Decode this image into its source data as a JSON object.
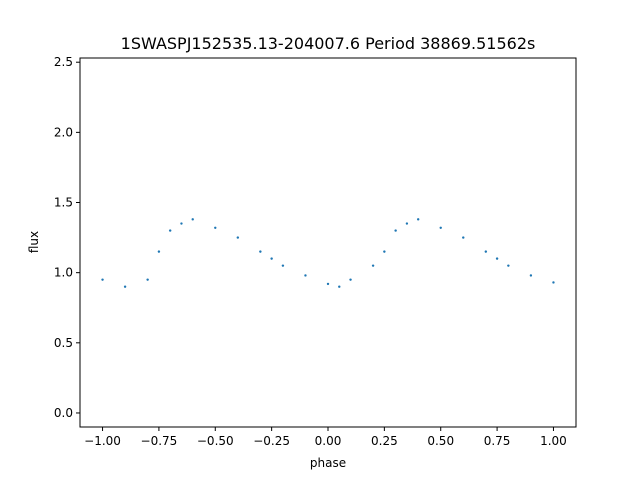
{
  "chart_data": {
    "type": "scatter",
    "title": "1SWASPJ152535.13-204007.6 Period 38869.51562s",
    "xlabel": "phase",
    "ylabel": "flux",
    "xlim": [
      -1.1,
      1.1
    ],
    "ylim": [
      -0.1,
      2.53
    ],
    "xticks": [
      -1.0,
      -0.75,
      -0.5,
      -0.25,
      0.0,
      0.25,
      0.5,
      0.75,
      1.0
    ],
    "xtick_labels": [
      "−1.00",
      "−0.75",
      "−0.50",
      "−0.25",
      "0.00",
      "0.25",
      "0.50",
      "0.75",
      "1.00"
    ],
    "yticks": [
      0.0,
      0.5,
      1.0,
      1.5,
      2.0,
      2.5
    ],
    "ytick_labels": [
      "0.0",
      "0.5",
      "1.0",
      "1.5",
      "2.0",
      "2.5"
    ],
    "grid": false,
    "legend": "none",
    "point_color": "#1f77b4",
    "series": [
      {
        "x": [
          -1.0,
          -0.9,
          -0.8,
          -0.75,
          -0.7,
          -0.65,
          -0.6,
          -0.5,
          -0.4,
          -0.3,
          -0.25,
          -0.2,
          -0.1,
          0.0,
          0.05,
          0.1,
          0.2,
          0.25,
          0.3,
          0.35,
          0.4,
          0.5,
          0.6,
          0.7,
          0.75,
          0.8,
          0.9,
          1.0
        ],
        "y": [
          0.95,
          0.9,
          0.95,
          1.15,
          1.3,
          1.35,
          1.38,
          1.32,
          1.25,
          1.15,
          1.1,
          1.05,
          0.98,
          0.92,
          0.9,
          0.95,
          1.05,
          1.15,
          1.3,
          1.35,
          1.38,
          1.32,
          1.25,
          1.15,
          1.1,
          1.05,
          0.98,
          0.93
        ]
      }
    ]
  }
}
